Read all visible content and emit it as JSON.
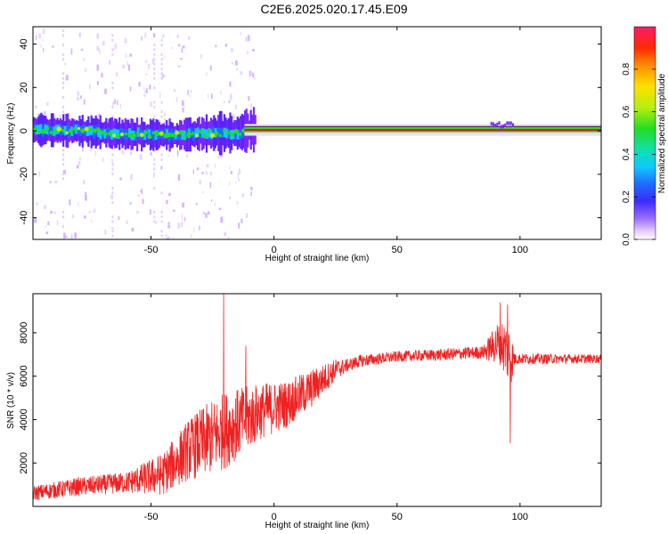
{
  "title": "C2E6.2025.020.17.45.E09",
  "chart_data": [
    {
      "type": "heatmap",
      "xlabel": "Height of straight line (km)",
      "ylabel": "Frequency (Hz)",
      "xlim": [
        -98,
        133
      ],
      "ylim": [
        -50,
        48
      ],
      "xticks": [
        -50,
        0,
        50,
        100
      ],
      "yticks": [
        -40,
        -20,
        0,
        20,
        40
      ],
      "colorbar": {
        "label": "Normalized spectral amplitude",
        "range": [
          0.0,
          1.0
        ],
        "ticks": [
          0.0,
          0.2,
          0.4,
          0.6,
          0.8
        ],
        "tick_labels": [
          "0.0",
          "0.2",
          "0.4",
          "0.6",
          "0.8"
        ]
      },
      "colors": {
        "stripe_high": "#e8102a",
        "line": "#000000",
        "green": "#22dd22",
        "noise": "#7a28ff"
      },
      "description_points": {
        "center_frequency_track": [
          {
            "x": -98,
            "y": 0.5
          },
          {
            "x": -80,
            "y": 0
          },
          {
            "x": -60,
            "y": -1.5
          },
          {
            "x": -40,
            "y": -2
          },
          {
            "x": -25,
            "y": -1
          },
          {
            "x": -15,
            "y": -1
          },
          {
            "x": -10,
            "y": 0.5
          },
          {
            "x": 133,
            "y": 0.5
          }
        ]
      }
    },
    {
      "type": "line",
      "xlabel": "Height of straight line (km)",
      "ylabel": "SNR (10 * v/v)",
      "xlim": [
        -98,
        133
      ],
      "ylim": [
        0,
        9800
      ],
      "xticks": [
        -50,
        0,
        50,
        100
      ],
      "yticks": [
        2000,
        4000,
        6000,
        8000
      ],
      "color": "#ee2222",
      "trend": [
        {
          "x": -98,
          "y": 600
        },
        {
          "x": -80,
          "y": 900
        },
        {
          "x": -60,
          "y": 1100
        },
        {
          "x": -45,
          "y": 1500
        },
        {
          "x": -35,
          "y": 2600
        },
        {
          "x": -25,
          "y": 3200
        },
        {
          "x": -15,
          "y": 3800
        },
        {
          "x": -5,
          "y": 4400
        },
        {
          "x": 5,
          "y": 4700
        },
        {
          "x": 15,
          "y": 5400
        },
        {
          "x": 25,
          "y": 6300
        },
        {
          "x": 35,
          "y": 6700
        },
        {
          "x": 50,
          "y": 6900
        },
        {
          "x": 70,
          "y": 7000
        },
        {
          "x": 85,
          "y": 7100
        },
        {
          "x": 92,
          "y": 7600
        },
        {
          "x": 97,
          "y": 6800
        },
        {
          "x": 110,
          "y": 6800
        },
        {
          "x": 133,
          "y": 6800
        }
      ],
      "noise_amplitude": [
        {
          "x": -98,
          "y": 350
        },
        {
          "x": -60,
          "y": 500
        },
        {
          "x": -45,
          "y": 1000
        },
        {
          "x": -30,
          "y": 1600
        },
        {
          "x": -20,
          "y": 1800
        },
        {
          "x": -5,
          "y": 1300
        },
        {
          "x": 15,
          "y": 900
        },
        {
          "x": 30,
          "y": 300
        },
        {
          "x": 50,
          "y": 250
        },
        {
          "x": 85,
          "y": 300
        },
        {
          "x": 90,
          "y": 900
        },
        {
          "x": 96,
          "y": 1500
        },
        {
          "x": 98,
          "y": 250
        },
        {
          "x": 133,
          "y": 200
        }
      ],
      "spikes": [
        {
          "x": -20.5,
          "y": 9800
        },
        {
          "x": -11.5,
          "y": 7400
        },
        {
          "x": 96,
          "y": 2900
        },
        {
          "x": 92,
          "y": 9400
        },
        {
          "x": 95,
          "y": 9300
        }
      ]
    }
  ]
}
